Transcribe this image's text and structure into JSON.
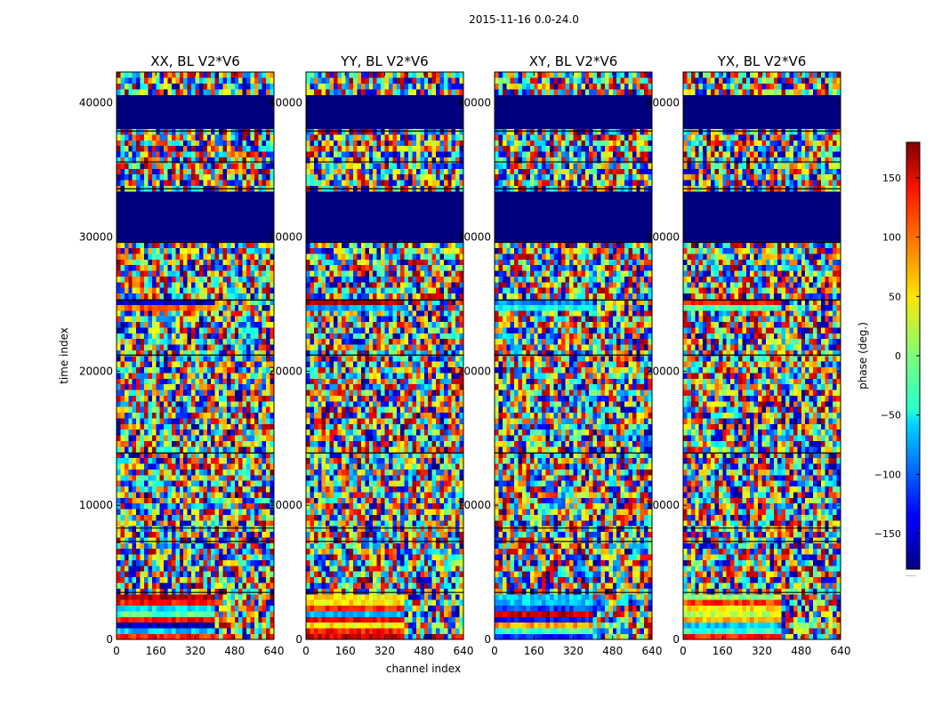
{
  "figure": {
    "title": "2015-11-16 0.0-24.0",
    "xlabel": "channel index",
    "ylabel": "time index",
    "colorbar_label": "phase (deg.)",
    "colorbar_footer": "......"
  },
  "chart_data": {
    "type": "heatmap",
    "title": "2015-11-16 0.0-24.0",
    "xlabel": "channel index",
    "ylabel": "time index",
    "xlim": [
      0,
      640
    ],
    "ylim": [
      0,
      42300
    ],
    "xticks": [
      0,
      160,
      320,
      480,
      640
    ],
    "yticks": [
      0,
      10000,
      20000,
      30000,
      40000
    ],
    "panels": [
      {
        "title": "XX, BL V2*V6",
        "pol": "XX"
      },
      {
        "title": "YY, BL V2*V6",
        "pol": "YY"
      },
      {
        "title": "XY, BL V2*V6",
        "pol": "XY"
      },
      {
        "title": "YX, BL V2*V6",
        "pol": "YX"
      }
    ],
    "colorbar": {
      "label": "phase (deg.)",
      "range": [
        -180,
        180
      ],
      "ticks": [
        -150,
        -100,
        -50,
        0,
        50,
        100,
        150
      ],
      "colormap": "jet"
    },
    "flagged_time_ranges": [
      [
        29800,
        33400
      ],
      [
        38000,
        40500
      ]
    ],
    "separator_lines_time": [
      3500,
      7300,
      8300,
      13900,
      21200,
      25300,
      29600,
      33600,
      35600,
      37900
    ],
    "channel_break": 400
  }
}
